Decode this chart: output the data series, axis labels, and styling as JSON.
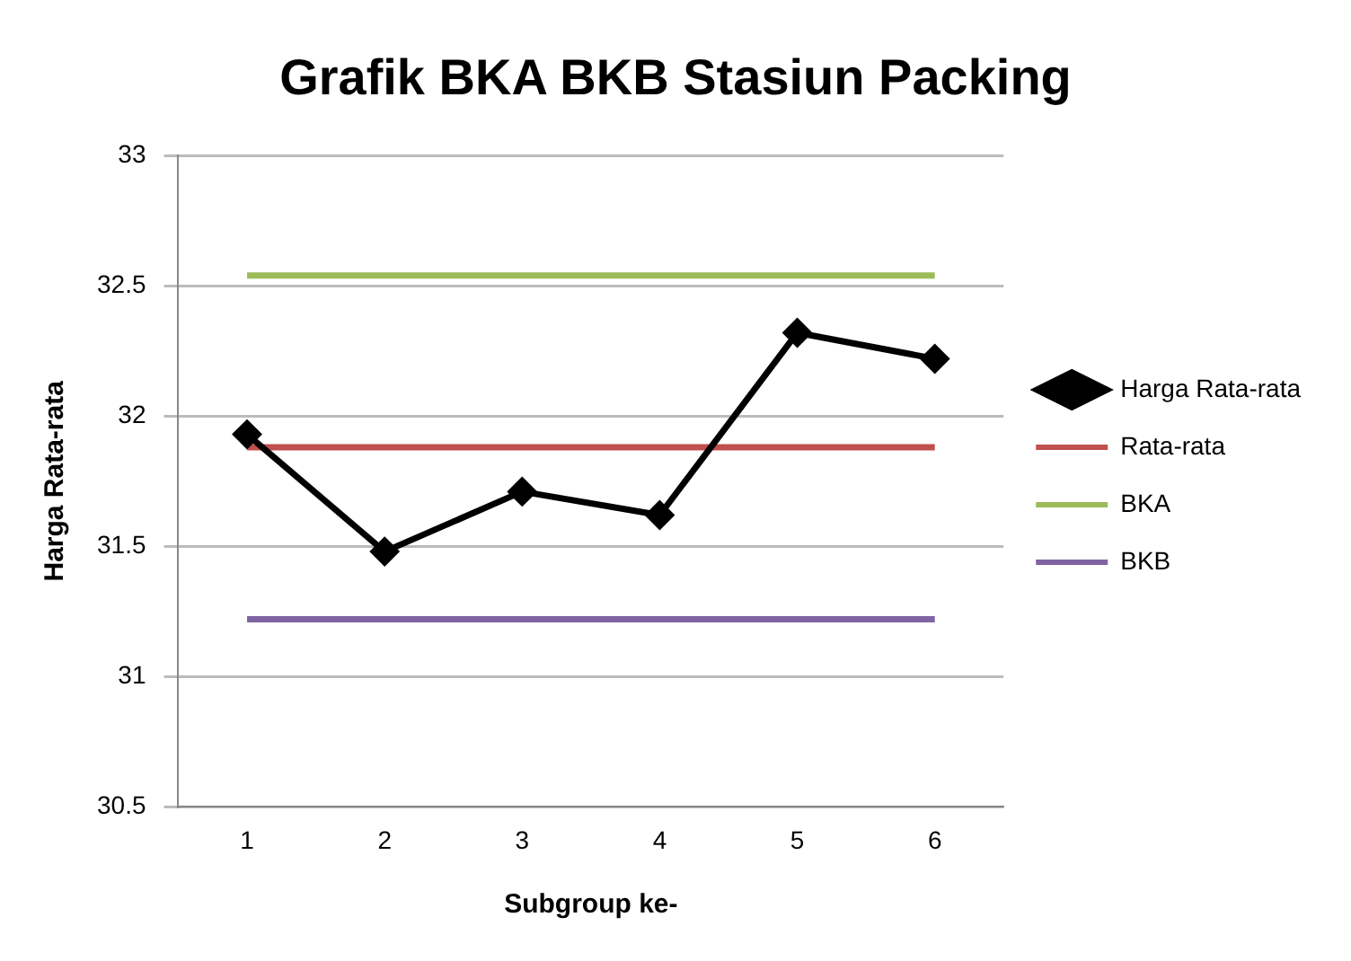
{
  "chart_data": {
    "type": "line",
    "title": "Grafik BKA BKB Stasiun Packing",
    "xlabel": "Subgroup ke-",
    "ylabel": "Harga Rata-rata",
    "categories": [
      "1",
      "2",
      "3",
      "4",
      "5",
      "6"
    ],
    "series": [
      {
        "name": "Harga Rata-rata",
        "color": "#000000",
        "marker": "diamond",
        "values": [
          31.93,
          31.48,
          31.71,
          31.62,
          32.32,
          32.22
        ]
      },
      {
        "name": "Rata-rata",
        "color": "#c0504d",
        "marker": "none",
        "values": [
          31.88,
          31.88,
          31.88,
          31.88,
          31.88,
          31.88
        ]
      },
      {
        "name": "BKA",
        "color": "#9bbb59",
        "marker": "none",
        "values": [
          32.54,
          32.54,
          32.54,
          32.54,
          32.54,
          32.54
        ]
      },
      {
        "name": "BKB",
        "color": "#8064a2",
        "marker": "none",
        "values": [
          31.22,
          31.22,
          31.22,
          31.22,
          31.22,
          31.22
        ]
      }
    ],
    "ylim": [
      30.5,
      33
    ],
    "yticks": [
      30.5,
      31,
      31.5,
      32,
      32.5,
      33
    ],
    "grid": "y",
    "legend": "right"
  }
}
